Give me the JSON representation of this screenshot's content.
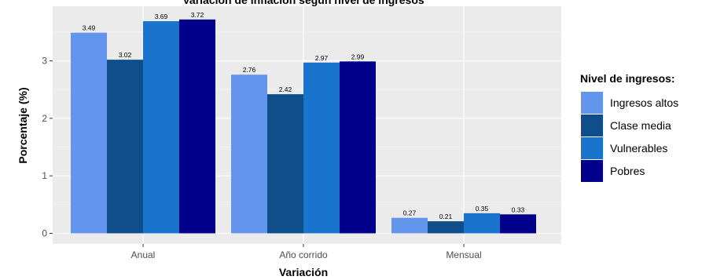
{
  "chart_data": {
    "type": "bar",
    "title": "Variación de inflación según nivel de ingresos",
    "xlabel": "Variación",
    "ylabel": "Porcentaje (%)",
    "categories": [
      "Anual",
      "Año corrido",
      "Mensual"
    ],
    "ylim": [
      0,
      4
    ],
    "yticks": [
      0,
      1,
      2,
      3
    ],
    "grid": true,
    "legend_position": "right",
    "legend_title": "Nivel de ingresos:",
    "series": [
      {
        "name": "Ingresos altos",
        "color": "#6495ED",
        "values": [
          3.49,
          2.76,
          0.27
        ],
        "labels": [
          "3.49",
          "2.76",
          "0.27"
        ]
      },
      {
        "name": "Clase media",
        "color": "#104E8B",
        "values": [
          3.02,
          2.42,
          0.21
        ],
        "labels": [
          "3.02",
          "2.42",
          "0.21"
        ]
      },
      {
        "name": "Vulnerables",
        "color": "#1874CD",
        "values": [
          3.69,
          2.97,
          0.35
        ],
        "labels": [
          "3.69",
          "2.97",
          "0.35"
        ]
      },
      {
        "name": "Pobres",
        "color": "#00008B",
        "values": [
          3.72,
          2.99,
          0.33
        ],
        "labels": [
          "3.72",
          "2.99",
          "0.33"
        ]
      }
    ]
  }
}
